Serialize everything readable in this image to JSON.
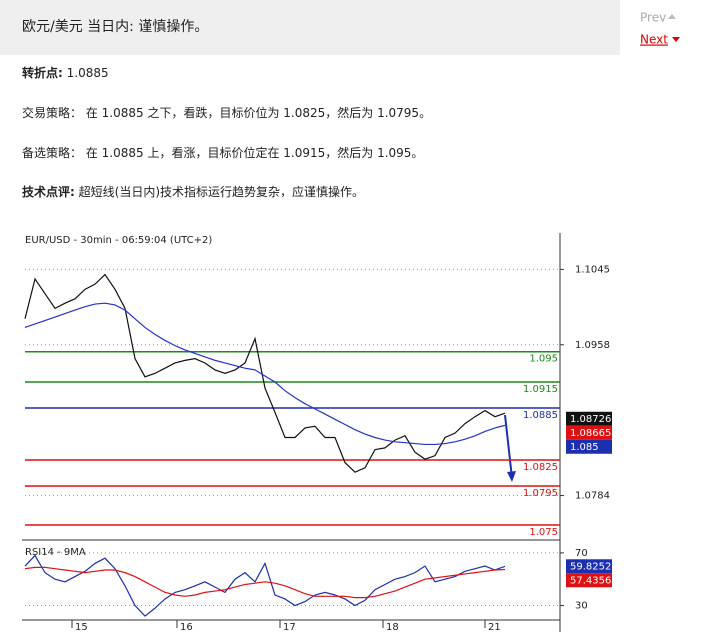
{
  "header": {
    "title": "欧元/美元 当日内: 谨慎操作。",
    "prev": "Prev",
    "next": "Next"
  },
  "paragraphs": [
    {
      "label": "转折点:",
      "text": "1.0885"
    },
    {
      "label": "交易策略：",
      "text": "在 1.0885 之下，看跌，目标价位为 1.0825，然后为 1.0795。"
    },
    {
      "label": "备选策略：",
      "text": "在 1.0885 上，看涨，目标价位定在 1.0915，然后为 1.095。"
    },
    {
      "label": "技术点评:",
      "text": "超短线(当日内)技术指标运行趋势复杂，应谨慎操作。"
    }
  ],
  "chart_data": [
    {
      "type": "line",
      "title": "EUR/USD - 30min - 06:59:04 (UTC+2)",
      "xlim": [
        0,
        53.5
      ],
      "ylim": [
        1.0735,
        1.1087
      ],
      "yticks": [
        1.1045,
        1.0958,
        1.0784
      ],
      "grid": true,
      "series": [
        {
          "color": "#111111",
          "values": [
            1.0988,
            1.1034,
            1.1017,
            1.1,
            1.1006,
            1.1011,
            1.1022,
            1.1028,
            1.1039,
            1.1022,
            1.1,
            1.0942,
            1.0921,
            1.0925,
            1.0931,
            1.0937,
            1.094,
            1.0942,
            1.0937,
            1.0929,
            1.0925,
            1.0929,
            1.0937,
            1.0965,
            1.0908,
            1.088,
            1.0851,
            1.0851,
            1.0862,
            1.0864,
            1.0851,
            1.0851,
            1.0822,
            1.0811,
            1.0816,
            1.0837,
            1.0839,
            1.0848,
            1.0853,
            1.0834,
            1.0826,
            1.083,
            1.0851,
            1.0856,
            1.0867,
            1.0875,
            1.0882,
            1.0875,
            1.0879
          ]
        },
        {
          "color": "#2233cc",
          "values": [
            1.0978,
            1.0982,
            1.0986,
            1.099,
            1.0994,
            1.0998,
            1.1002,
            1.1005,
            1.1006,
            1.1004,
            1.0998,
            1.0988,
            1.0978,
            1.097,
            1.0963,
            1.0957,
            1.0952,
            1.0948,
            1.0944,
            1.094,
            1.0937,
            1.0934,
            1.0931,
            1.0929,
            1.0922,
            1.0915,
            1.0905,
            1.0897,
            1.089,
            1.0884,
            1.0878,
            1.0872,
            1.0866,
            1.086,
            1.0855,
            1.0851,
            1.0848,
            1.0846,
            1.0845,
            1.0844,
            1.0843,
            1.0843,
            1.0844,
            1.0846,
            1.0849,
            1.0853,
            1.0858,
            1.0862,
            1.0865
          ]
        }
      ],
      "levels": [
        {
          "value": 1.095,
          "color": "#1a8a1a"
        },
        {
          "value": 1.0915,
          "color": "#1a8a1a"
        },
        {
          "value": 1.0885,
          "color": "#1c2fb0"
        },
        {
          "value": 1.0825,
          "color": "#dd1111"
        },
        {
          "value": 1.0795,
          "color": "#dd1111"
        },
        {
          "value": 1.075,
          "color": "#dd1111"
        }
      ],
      "markers": [
        {
          "value": 1.08726,
          "color": "#111111"
        },
        {
          "value": 1.08665,
          "color": "#dd1111"
        },
        {
          "value": 1.085,
          "color": "#1c2fb0"
        }
      ]
    },
    {
      "type": "line",
      "title": "RSI14 - 9MA",
      "xlim": [
        0,
        53.5
      ],
      "ylim": [
        19,
        76
      ],
      "yticks": [
        70,
        30
      ],
      "grid": true,
      "xticks": [
        {
          "value": 4.7,
          "label": "15"
        },
        {
          "value": 15.2,
          "label": "16"
        },
        {
          "value": 25.5,
          "label": "17"
        },
        {
          "value": 35.8,
          "label": "18"
        },
        {
          "value": 46,
          "label": "21"
        }
      ],
      "series": [
        {
          "color": "#1c2fb0",
          "values": [
            60,
            68,
            55,
            50,
            48,
            52,
            56,
            62,
            66,
            58,
            45,
            30,
            22,
            28,
            35,
            40,
            42,
            45,
            48,
            44,
            40,
            50,
            55,
            48,
            62,
            38,
            35,
            30,
            33,
            38,
            40,
            38,
            35,
            30,
            34,
            42,
            46,
            50,
            52,
            55,
            60,
            48,
            50,
            52,
            56,
            58,
            60,
            57,
            59.8
          ]
        },
        {
          "color": "#dd1111",
          "values": [
            58,
            59,
            59,
            58,
            57,
            56,
            55,
            56,
            57,
            57,
            55,
            52,
            48,
            44,
            40,
            38,
            37,
            38,
            40,
            41,
            42,
            44,
            46,
            47,
            48,
            47,
            45,
            42,
            39,
            37,
            37,
            37,
            37,
            36,
            36,
            37,
            39,
            41,
            44,
            47,
            50,
            51,
            52,
            53,
            54,
            55,
            56,
            57,
            57.4
          ]
        }
      ],
      "markers": [
        {
          "value": 59.8252,
          "color": "#1c2fb0"
        },
        {
          "value": 57.4356,
          "color": "#dd1111"
        }
      ]
    }
  ]
}
